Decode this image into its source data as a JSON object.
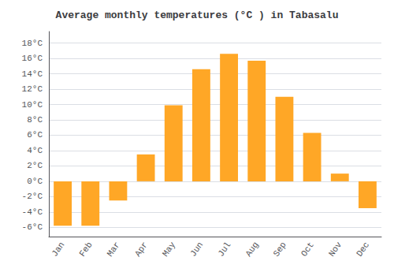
{
  "chart_data": {
    "type": "bar",
    "title": "Average monthly temperatures (°C ) in Tabasalu",
    "categories": [
      "Jan",
      "Feb",
      "Mar",
      "Apr",
      "May",
      "Jun",
      "Jul",
      "Aug",
      "Sep",
      "Oct",
      "Nov",
      "Dec"
    ],
    "values": [
      -5.8,
      -5.8,
      -2.5,
      3.5,
      9.9,
      14.6,
      16.6,
      15.7,
      11.0,
      6.3,
      1.0,
      -3.5
    ],
    "color": "#FFA726",
    "ylim": [
      -7.2,
      19.5
    ],
    "yticks": [
      {
        "value": -6,
        "label": "-6°C"
      },
      {
        "value": -4,
        "label": "-4°C"
      },
      {
        "value": -2,
        "label": "-2°C"
      },
      {
        "value": 0,
        "label": "0°C"
      },
      {
        "value": 2,
        "label": "2°C"
      },
      {
        "value": 4,
        "label": "4°C"
      },
      {
        "value": 6,
        "label": "6°C"
      },
      {
        "value": 8,
        "label": "8°C"
      },
      {
        "value": 10,
        "label": "10°C"
      },
      {
        "value": 12,
        "label": "12°C"
      },
      {
        "value": 14,
        "label": "14°C"
      },
      {
        "value": 16,
        "label": "16°C"
      },
      {
        "value": 18,
        "label": "18°C"
      }
    ],
    "grid": true
  }
}
